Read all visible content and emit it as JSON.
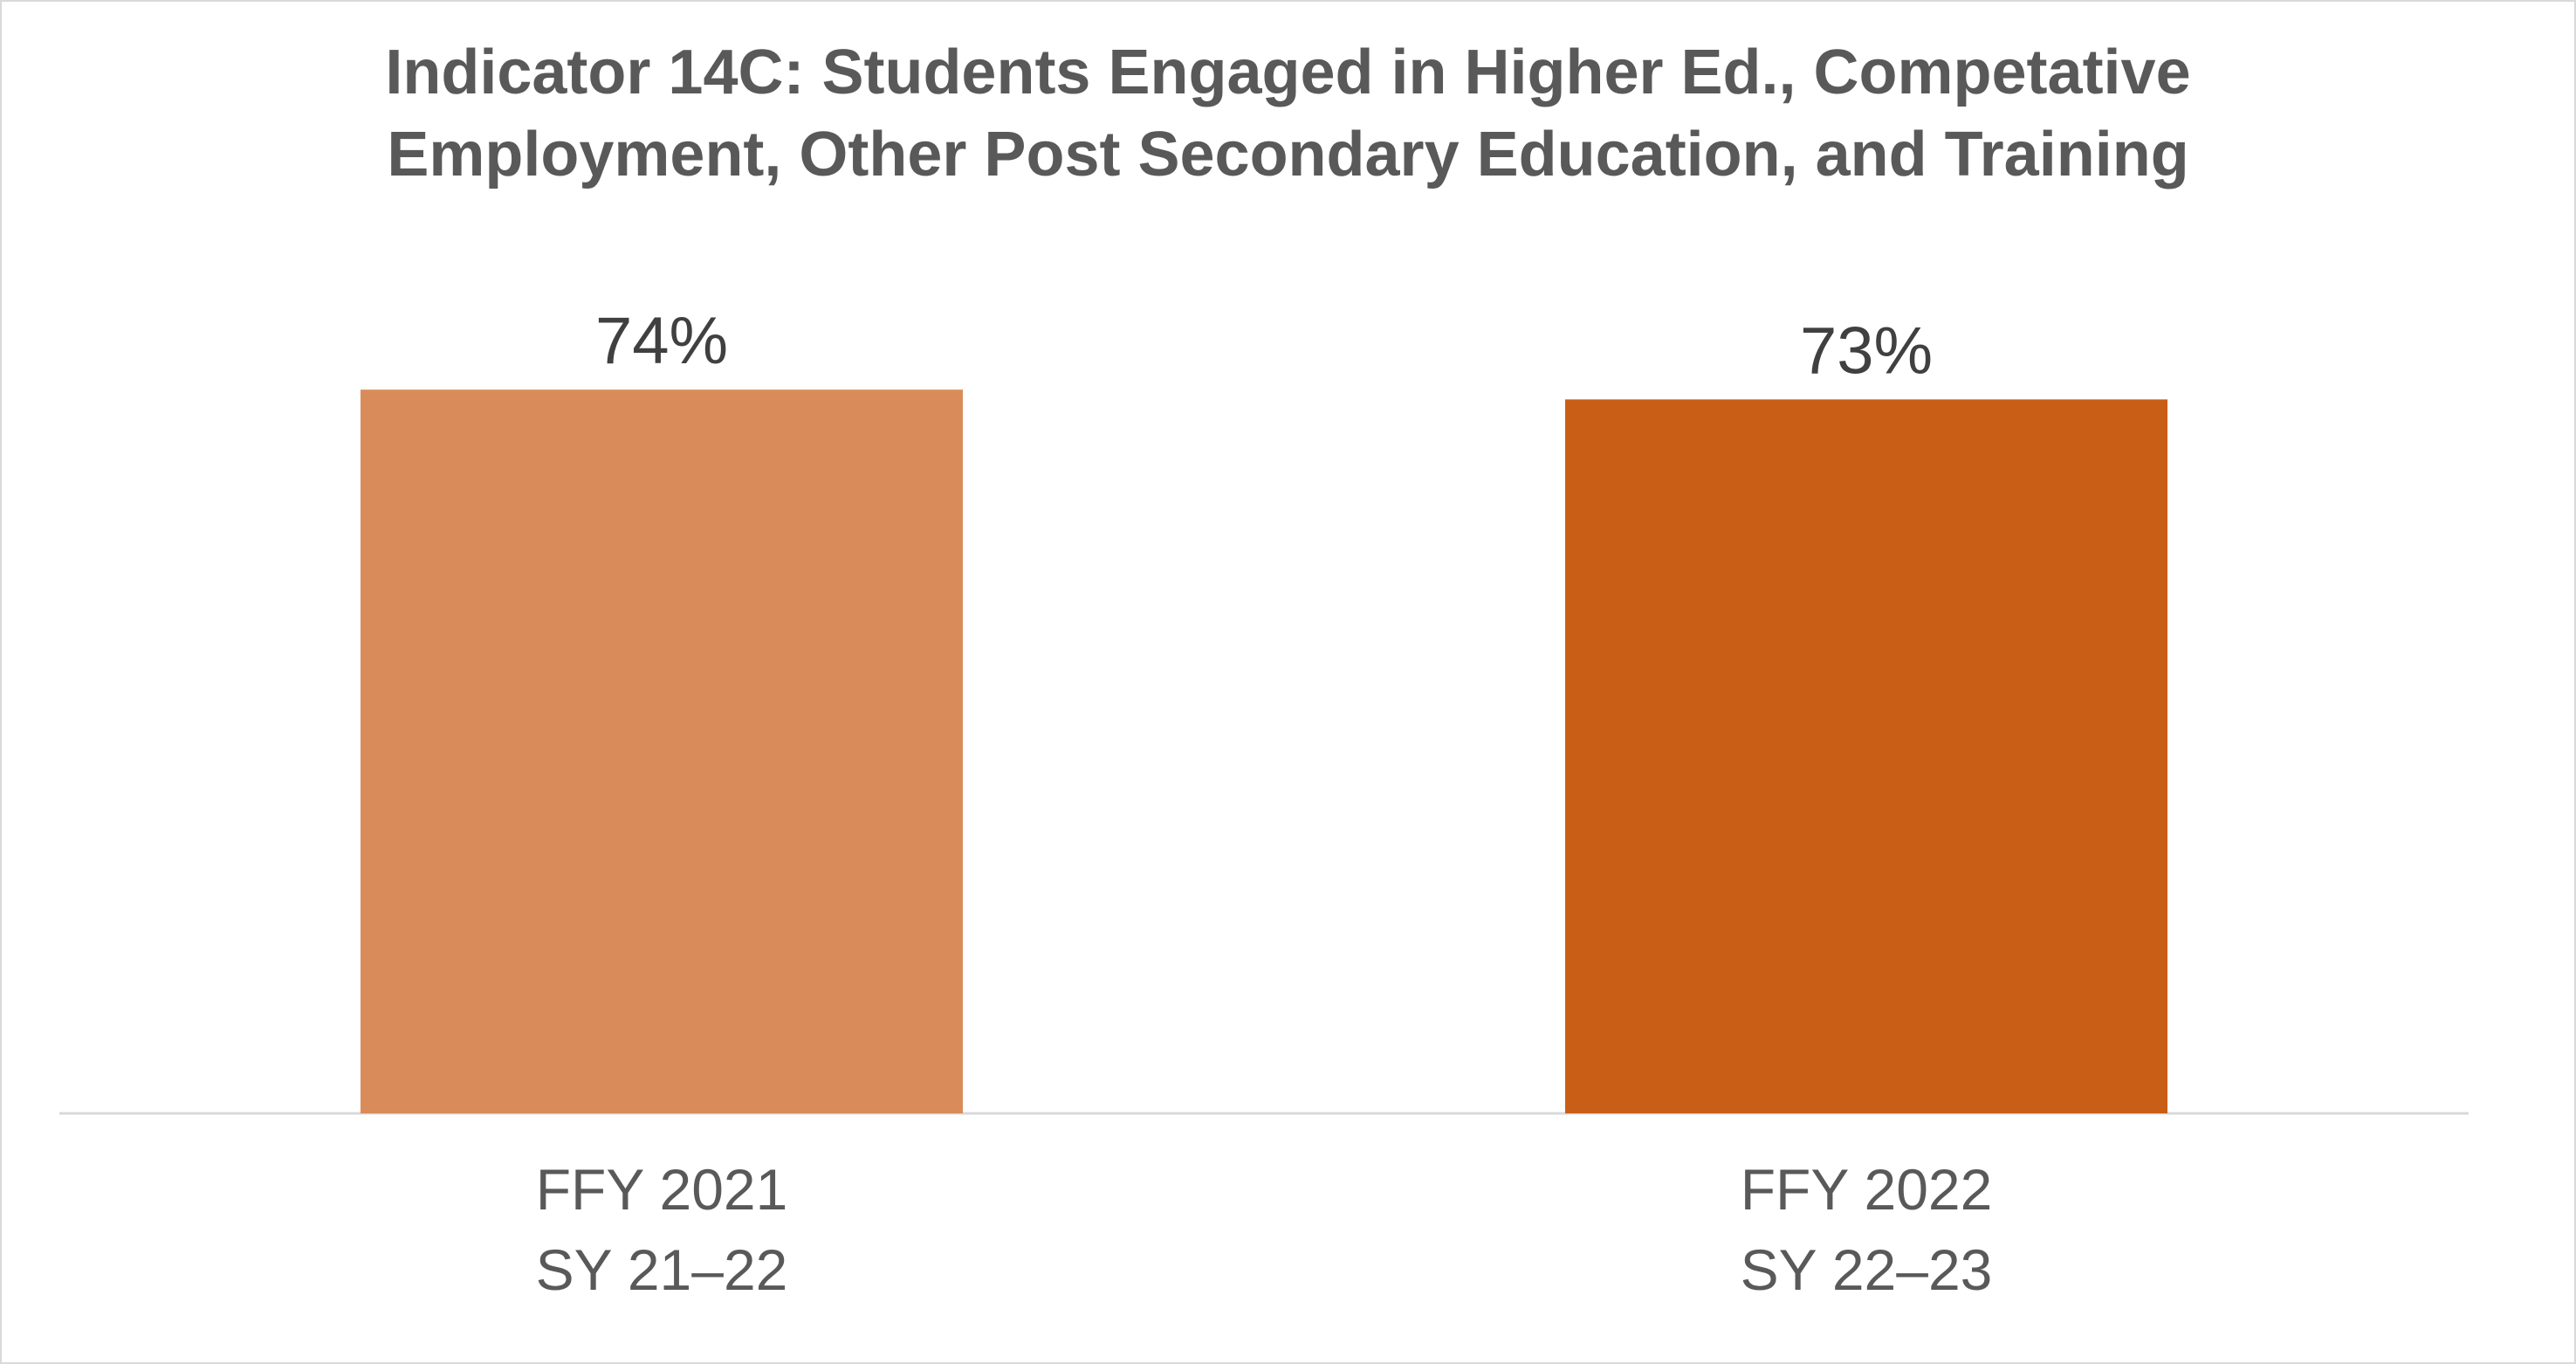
{
  "chart_data": {
    "type": "bar",
    "title_lines": [
      "Indicator 14C: Students Engaged in Higher Ed., Competative",
      "Employment, Other Post Secondary Education, and Training"
    ],
    "categories": [
      [
        "FFY 2021",
        "SY 21–22"
      ],
      [
        "FFY 2022",
        "SY 22–23"
      ]
    ],
    "values": [
      74,
      73
    ],
    "data_labels": [
      "74%",
      "73%"
    ],
    "colors": [
      "#d98c5a",
      "#c95f16"
    ],
    "ylim": [
      0,
      100
    ],
    "grid": false,
    "legend": "none",
    "xlabel": "",
    "ylabel": ""
  }
}
